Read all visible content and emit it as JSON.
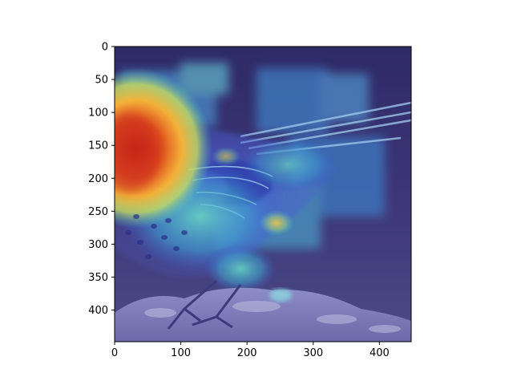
{
  "figure": {
    "background": "#ffffff",
    "axes_color": "#000000",
    "xlim": [
      0,
      448
    ],
    "ylim": [
      448,
      0
    ],
    "x_ticks": [
      "0",
      "100",
      "200",
      "300",
      "400"
    ],
    "y_ticks": [
      "0",
      "50",
      "100",
      "150",
      "200",
      "250",
      "300",
      "350",
      "400"
    ]
  },
  "image": {
    "description_icon": "heatmap-overlay-image",
    "colormap": "jet",
    "palette": {
      "background_dark": "#3a3470",
      "heat_red": "#c8331c",
      "heat_orange": "#f08a2a",
      "heat_yellow": "#f0d840",
      "heat_cyan": "#4ec8c8",
      "heat_blue": "#3b5fd0",
      "bird_blue": "#5a73c8",
      "rock_light": "#b8b8d8"
    }
  }
}
